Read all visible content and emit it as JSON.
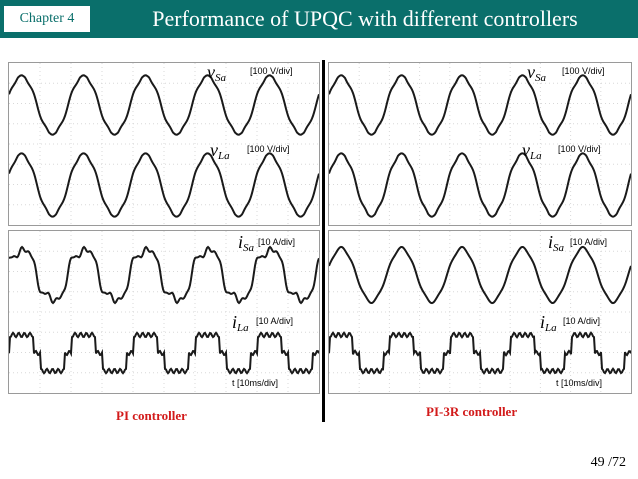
{
  "header": {
    "chapter": "Chapter 4",
    "title": "Performance of UPQC with different controllers"
  },
  "left": {
    "caption": "PI controller",
    "labels": {
      "vSa": {
        "sym": "v",
        "sub": "Sa",
        "scale": "[100 V/div]"
      },
      "vLa": {
        "sym": "v",
        "sub": "La",
        "scale": "[100 V/div]"
      },
      "iSa": {
        "sym": "i",
        "sub": "Sa",
        "scale": "[10 A/div]"
      },
      "iLa": {
        "sym": "i",
        "sub": "La",
        "scale": "[10 A/div]"
      },
      "t": "t [10ms/div]"
    }
  },
  "right": {
    "caption": "PI-3R controller",
    "labels": {
      "vSa": {
        "sym": "v",
        "sub": "Sa",
        "scale": "[100 V/div]"
      },
      "vLa": {
        "sym": "v",
        "sub": "La",
        "scale": "[100 V/div]"
      },
      "iSa": {
        "sym": "i",
        "sub": "Sa",
        "scale": "[10 A/div]"
      },
      "iLa": {
        "sym": "i",
        "sub": "La",
        "scale": "[10 A/div]"
      },
      "t": "t [10ms/div]"
    }
  },
  "page": "49 /72",
  "colors": {
    "header_bg": "#0a6f6b",
    "caption": "#d21a1a",
    "trace": "#1a1a1a"
  }
}
